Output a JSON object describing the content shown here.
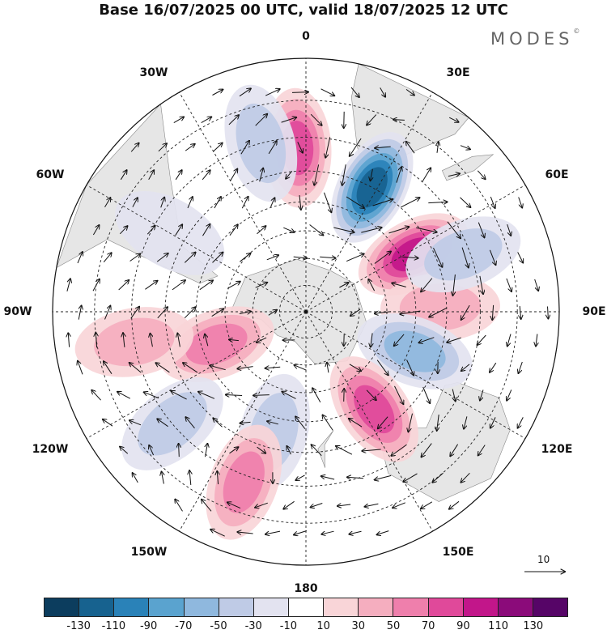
{
  "title": "Base 16/07/2025 00 UTC, valid 18/07/2025 12 UTC",
  "brand": {
    "name": "MODES",
    "mark": "©"
  },
  "longitude_labels": {
    "lon_0": "0",
    "lon_30e": "30E",
    "lon_60e": "60E",
    "lon_90e": "90E",
    "lon_120e": "120E",
    "lon_150e": "150E",
    "lon_180": "180",
    "lon_150w": "150W",
    "lon_120w": "120W",
    "lon_90w": "90W",
    "lon_60w": "60W",
    "lon_30w": "30W"
  },
  "vector_reference": {
    "label": "10"
  },
  "colorbar": {
    "colors": [
      "#0c3d5e",
      "#17628f",
      "#2a82b8",
      "#5aa3cf",
      "#8fb8de",
      "#bfcbe6",
      "#e3e3f0",
      "#ffffff",
      "#f9d5d8",
      "#f5aebf",
      "#ef7fac",
      "#e0499a",
      "#c2168a",
      "#8b0b7a",
      "#560567"
    ],
    "labels": [
      "-130",
      "-110",
      "-90",
      "-70",
      "-50",
      "-30",
      "-10",
      "10",
      "30",
      "50",
      "70",
      "90",
      "110",
      "130"
    ]
  },
  "anomaly_blobs": [
    {
      "lat": -33,
      "lon": -3,
      "value": 60
    },
    {
      "lat": -40,
      "lon": 28,
      "value": -110
    },
    {
      "lat": -46,
      "lon": 62,
      "value": 90
    },
    {
      "lat": -42,
      "lon": 88,
      "value": 35
    },
    {
      "lat": -48,
      "lon": 110,
      "value": -50
    },
    {
      "lat": -47,
      "lon": 145,
      "value": 70
    },
    {
      "lat": -45,
      "lon": -165,
      "value": -30
    },
    {
      "lat": -28,
      "lon": -160,
      "value": 40
    },
    {
      "lat": -55,
      "lon": -110,
      "value": 40
    },
    {
      "lat": -30,
      "lon": -100,
      "value": 25
    },
    {
      "lat": -30,
      "lon": -130,
      "value": -20
    },
    {
      "lat": -32,
      "lon": 70,
      "value": -30
    },
    {
      "lat": -30,
      "lon": -15,
      "value": -20
    },
    {
      "lat": -35,
      "lon": -60,
      "value": -15
    }
  ]
}
